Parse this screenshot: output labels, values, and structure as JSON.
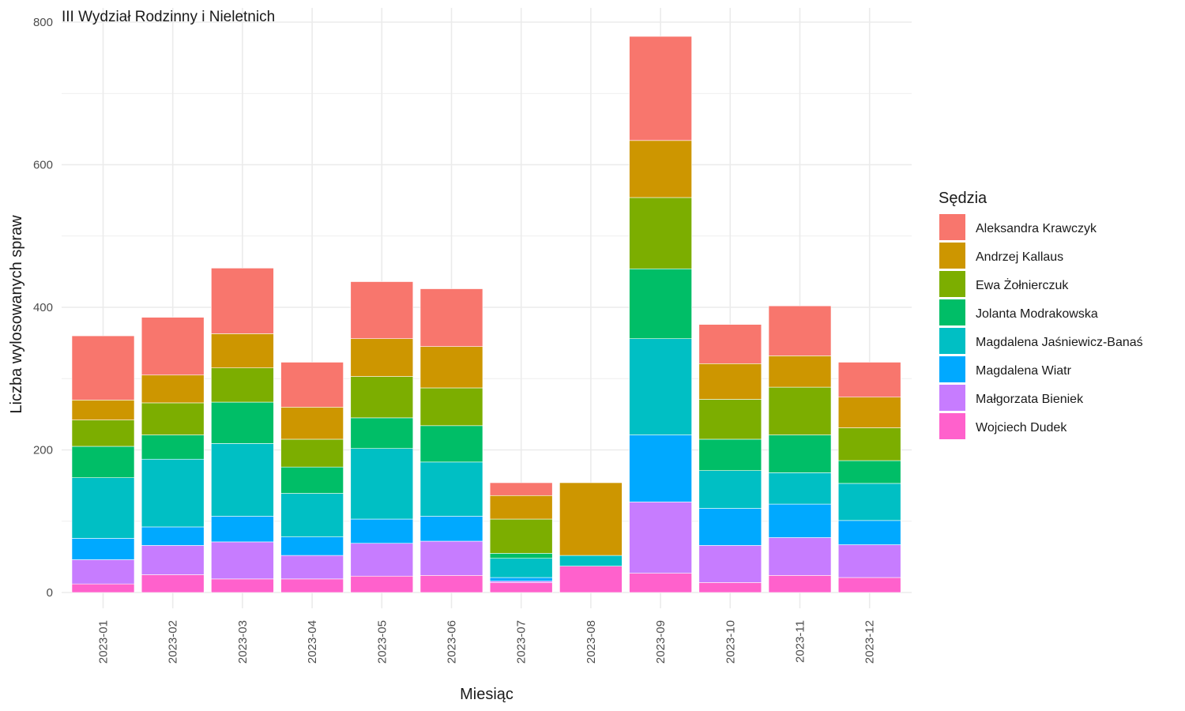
{
  "chart_data": {
    "type": "bar",
    "stacked": true,
    "title": "III Wydział Rodzinny i Nieletnich",
    "xlabel": "Miesiąc",
    "ylabel": "Liczba wylosowanych spraw",
    "ylim": [
      0,
      800
    ],
    "yticks": [
      0,
      200,
      400,
      600,
      800
    ],
    "grid": true,
    "legend_title": "Sędzia",
    "legend_position": "right",
    "categories": [
      "2023-01",
      "2023-02",
      "2023-03",
      "2023-04",
      "2023-05",
      "2023-06",
      "2023-07",
      "2023-08",
      "2023-09",
      "2023-10",
      "2023-11",
      "2023-12"
    ],
    "series": [
      {
        "name": "Aleksandra Krawczyk",
        "color": "#F8766D",
        "values": [
          90,
          81,
          92,
          63,
          80,
          81,
          18,
          0,
          146,
          55,
          70,
          49
        ]
      },
      {
        "name": "Andrzej Kallaus",
        "color": "#CD9600",
        "values": [
          28,
          39,
          48,
          45,
          53,
          58,
          33,
          102,
          80,
          50,
          44,
          43
        ]
      },
      {
        "name": "Ewa Żołnierczuk",
        "color": "#7CAE00",
        "values": [
          37,
          45,
          48,
          39,
          58,
          53,
          48,
          0,
          100,
          56,
          67,
          46
        ]
      },
      {
        "name": "Jolanta Modrakowska",
        "color": "#00BE67",
        "values": [
          44,
          34,
          58,
          37,
          43,
          51,
          7,
          0,
          98,
          44,
          53,
          32
        ]
      },
      {
        "name": "Magdalena Jaśniewicz-Banaś",
        "color": "#00BFC4",
        "values": [
          85,
          95,
          102,
          61,
          99,
          76,
          27,
          15,
          135,
          53,
          44,
          52
        ]
      },
      {
        "name": "Magdalena Wiatr",
        "color": "#00A9FF",
        "values": [
          30,
          26,
          36,
          26,
          34,
          35,
          5,
          0,
          94,
          52,
          47,
          34
        ]
      },
      {
        "name": "Małgorzata Bieniek",
        "color": "#C77CFF",
        "values": [
          34,
          41,
          52,
          33,
          46,
          48,
          2,
          0,
          100,
          52,
          53,
          46
        ]
      },
      {
        "name": "Wojciech Dudek",
        "color": "#FF61CC",
        "values": [
          12,
          25,
          19,
          19,
          23,
          24,
          14,
          37,
          27,
          14,
          24,
          21
        ]
      }
    ]
  }
}
